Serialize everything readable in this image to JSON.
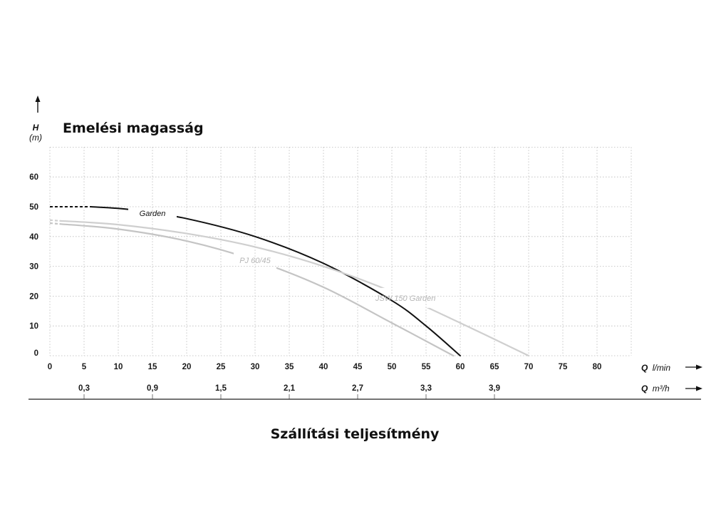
{
  "chart_data": {
    "type": "line",
    "title": "Emelési magasság",
    "xlabel": "Szállítási teljesítmény",
    "y_axis": {
      "symbol": "H",
      "unit": "(m)",
      "ticks": [
        0,
        10,
        20,
        30,
        40,
        50,
        60
      ],
      "range": [
        0,
        70
      ]
    },
    "x_axis_primary": {
      "symbol": "Q",
      "unit": "l/min",
      "ticks": [
        0,
        5,
        10,
        15,
        20,
        25,
        30,
        35,
        40,
        45,
        50,
        55,
        60,
        65,
        70,
        75,
        80
      ],
      "range": [
        0,
        85
      ]
    },
    "x_axis_secondary": {
      "symbol": "Q",
      "unit": "m³/h",
      "tick_labels": [
        "0,3",
        "0,9",
        "1,5",
        "2,1",
        "2,7",
        "3,3",
        "3,9"
      ],
      "tick_positions_lmin": [
        5,
        15,
        25,
        35,
        45,
        55,
        65
      ]
    },
    "grid": true,
    "series": [
      {
        "name": "Garden",
        "color": "#111111",
        "dashed_until_x": 6,
        "label_x": 15,
        "points": [
          [
            0,
            50
          ],
          [
            6,
            50
          ],
          [
            12,
            49
          ],
          [
            20,
            46
          ],
          [
            30,
            40
          ],
          [
            40,
            31
          ],
          [
            50,
            18.5
          ],
          [
            55,
            10
          ],
          [
            60,
            0
          ]
        ]
      },
      {
        "name": "PJ 60/45",
        "color": "#c4c4c4",
        "dashed_until_x": 1.5,
        "label_x": 30,
        "points": [
          [
            0,
            44.5
          ],
          [
            10,
            42.5
          ],
          [
            20,
            38.5
          ],
          [
            30,
            32
          ],
          [
            40,
            23
          ],
          [
            50,
            11
          ],
          [
            59,
            0
          ]
        ]
      },
      {
        "name": "JSW 150 Garden",
        "color": "#cfcfcf",
        "dashed_until_x": 1.5,
        "label_x": 52,
        "points": [
          [
            0,
            45.5
          ],
          [
            10,
            44
          ],
          [
            20,
            41
          ],
          [
            30,
            36.5
          ],
          [
            40,
            30
          ],
          [
            50,
            21.5
          ],
          [
            60,
            11
          ],
          [
            70,
            0
          ]
        ]
      }
    ]
  }
}
